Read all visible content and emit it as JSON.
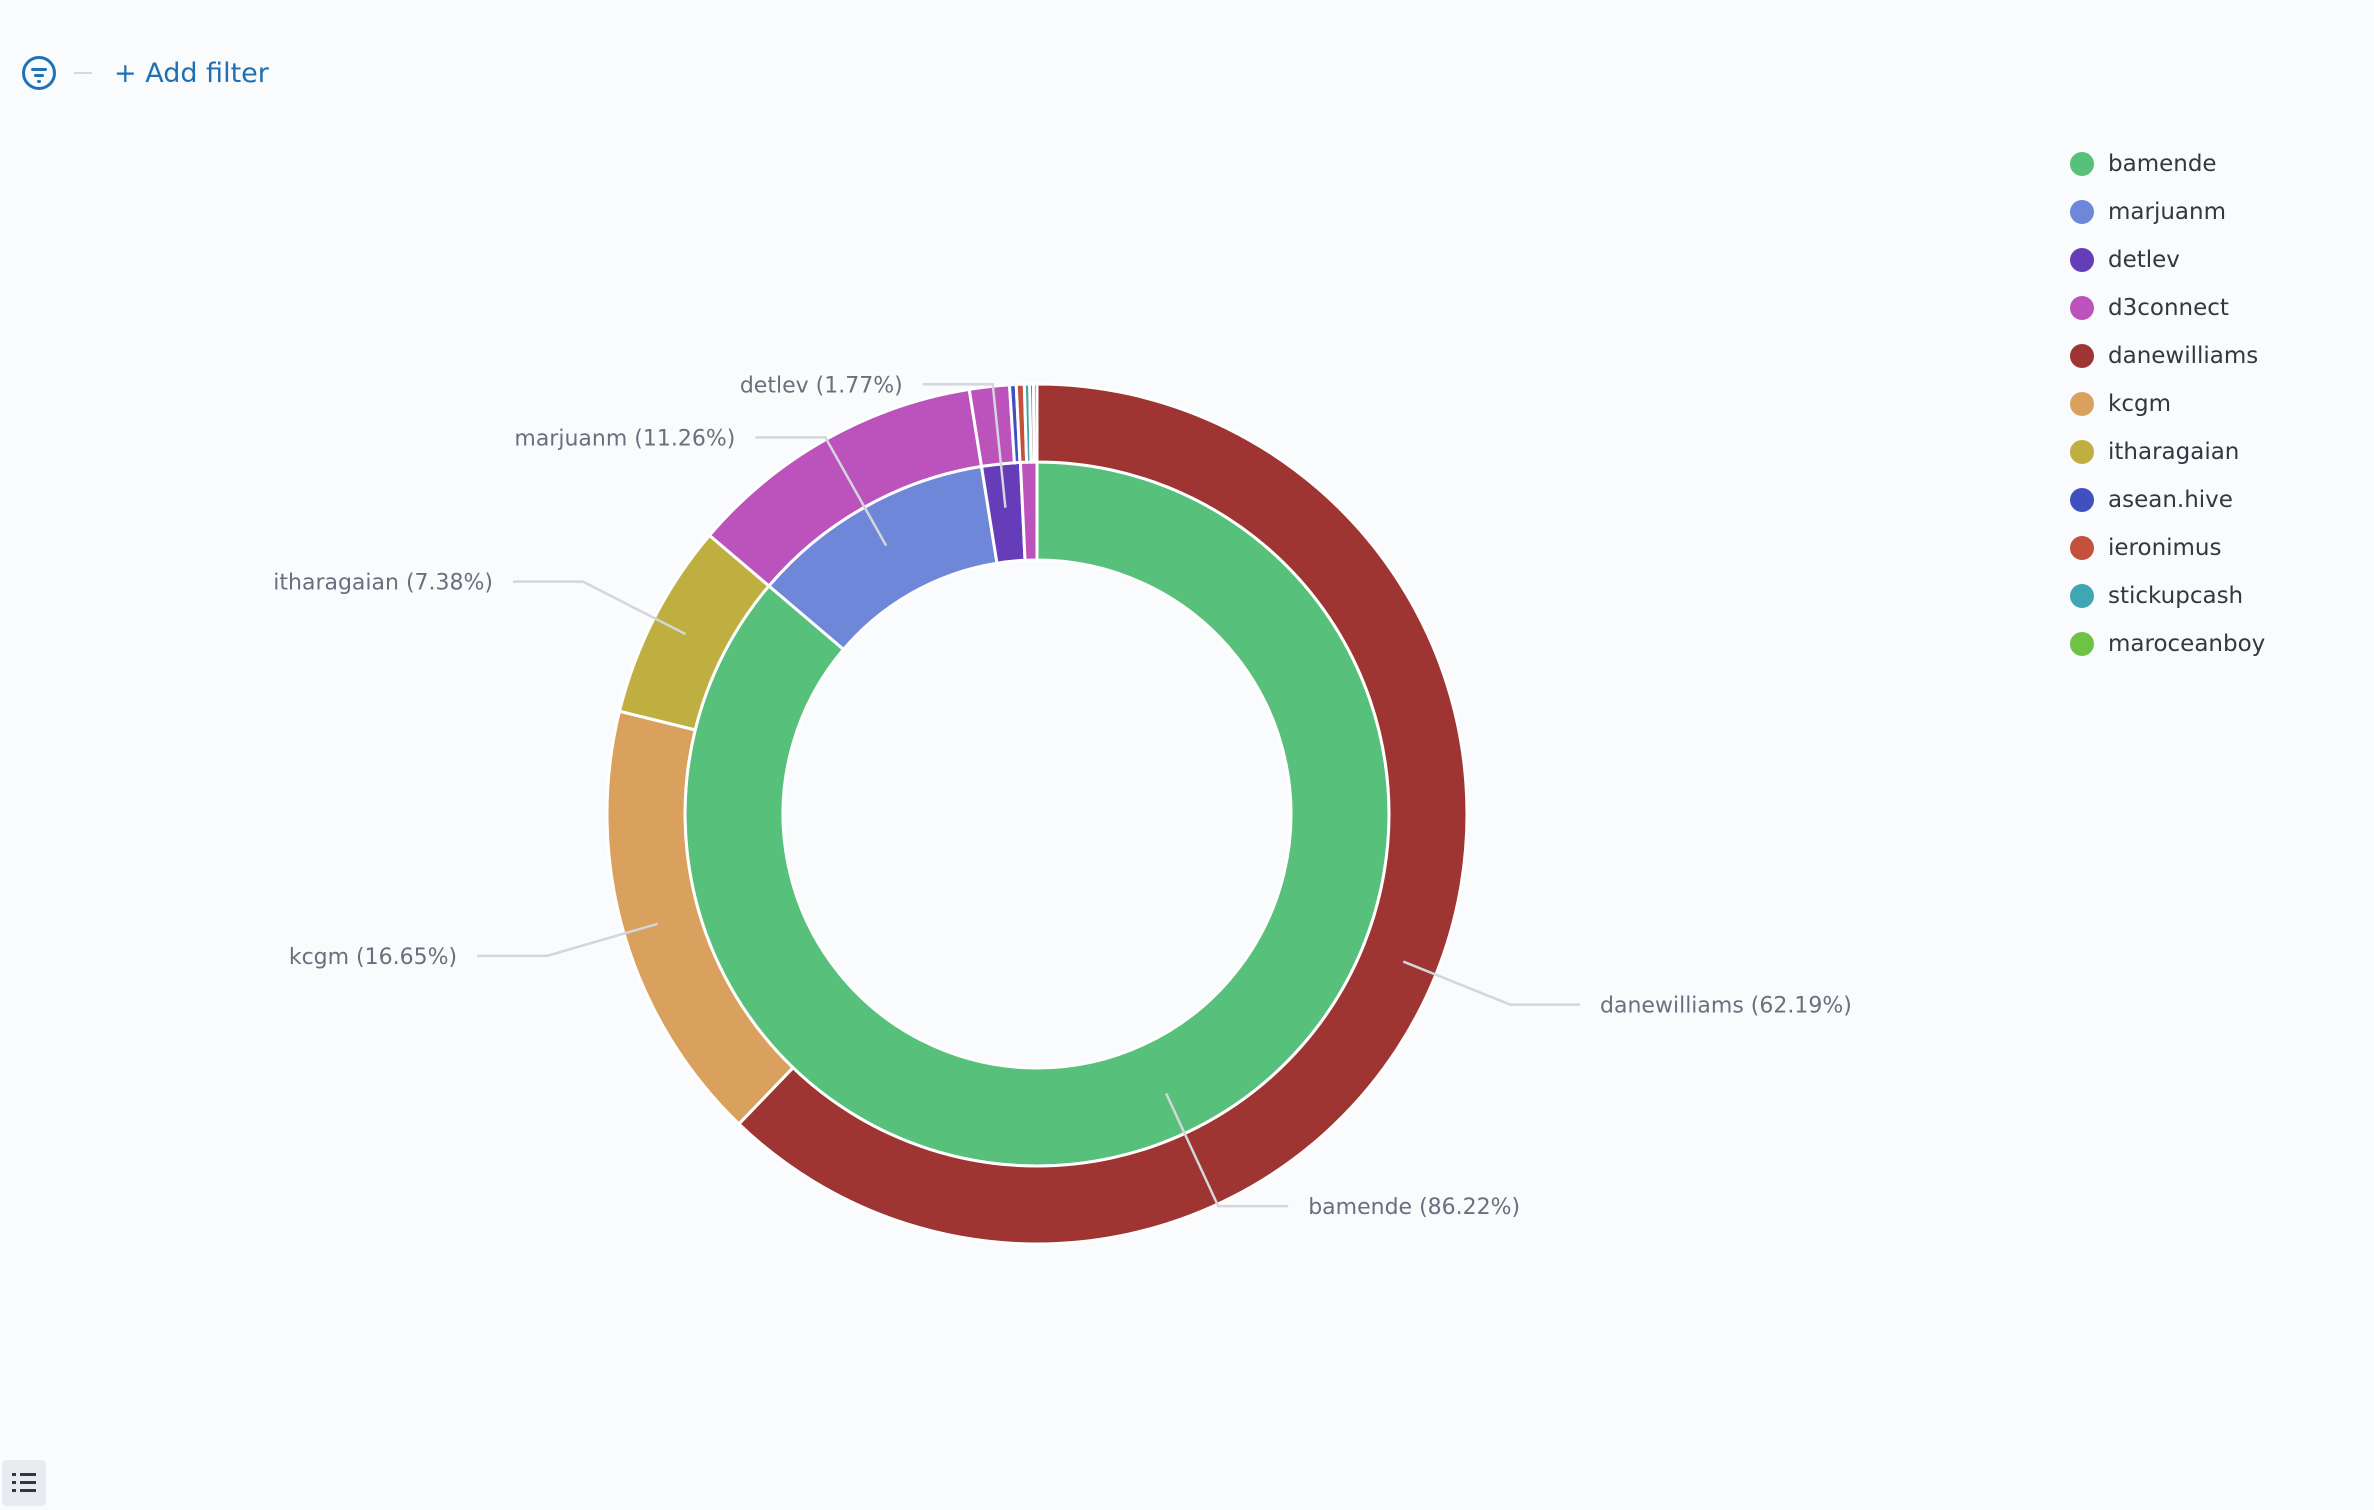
{
  "filter_bar": {
    "icon": "filter-icon",
    "add_filter_label": "+ Add filter"
  },
  "chart_data": {
    "type": "pie",
    "donut": true,
    "rings": [
      {
        "ring": "inner",
        "slices": [
          {
            "name": "bamende",
            "value": 86.22,
            "color": "#57c17b"
          },
          {
            "name": "marjuanm",
            "value": 11.26,
            "color": "#6f87d8"
          },
          {
            "name": "detlev",
            "value": 1.77,
            "color": "#663db8"
          },
          {
            "name": "d3connect",
            "value": 0.75,
            "color": "#bc52bc"
          }
        ]
      },
      {
        "ring": "outer",
        "slices": [
          {
            "name": "danewilliams",
            "value": 62.19,
            "color": "#9e3533"
          },
          {
            "name": "kcgm",
            "value": 16.65,
            "color": "#daa05d"
          },
          {
            "name": "itharagaian",
            "value": 7.38,
            "color": "#bfaf40"
          },
          {
            "name": "d3connect",
            "value": 11.26,
            "color": "#bc52bc"
          },
          {
            "name": "d3connect",
            "value": 1.5,
            "color": "#bc52bc"
          },
          {
            "name": "asean.hive",
            "value": 0.25,
            "color": "#4050bf"
          },
          {
            "name": "ieronimus",
            "value": 0.3,
            "color": "#c4513d"
          },
          {
            "name": "stickupcash",
            "value": 0.2,
            "color": "#3fa7b2"
          },
          {
            "name": "danewilliams",
            "value": 0.14,
            "color": "#9e3533"
          },
          {
            "name": "asean.hive",
            "value": 0.13,
            "color": "#4050bf"
          }
        ]
      }
    ],
    "labels": [
      {
        "text": "bamende (86.22%)",
        "ring": "inner",
        "slice": 0
      },
      {
        "text": "marjuanm (11.26%)",
        "ring": "inner",
        "slice": 1
      },
      {
        "text": "detlev (1.77%)",
        "ring": "inner",
        "slice": 2
      },
      {
        "text": "danewilliams (62.19%)",
        "ring": "outer",
        "slice": 0
      },
      {
        "text": "kcgm (16.65%)",
        "ring": "outer",
        "slice": 1
      },
      {
        "text": "itharagaian (7.38%)",
        "ring": "outer",
        "slice": 2
      }
    ],
    "legend": {
      "placement": "right",
      "items": [
        {
          "label": "bamende",
          "color": "#57c17b"
        },
        {
          "label": "marjuanm",
          "color": "#6f87d8"
        },
        {
          "label": "detlev",
          "color": "#663db8"
        },
        {
          "label": "d3connect",
          "color": "#bc52bc"
        },
        {
          "label": "danewilliams",
          "color": "#9e3533"
        },
        {
          "label": "kcgm",
          "color": "#daa05d"
        },
        {
          "label": "itharagaian",
          "color": "#bfaf40"
        },
        {
          "label": "asean.hive",
          "color": "#4050bf"
        },
        {
          "label": "ieronimus",
          "color": "#c4513d"
        },
        {
          "label": "stickupcash",
          "color": "#3fa7b2"
        },
        {
          "label": "maroceanboy",
          "color": "#6ec246"
        }
      ]
    }
  },
  "bottom_toolbar": {
    "icon": "list-icon"
  }
}
